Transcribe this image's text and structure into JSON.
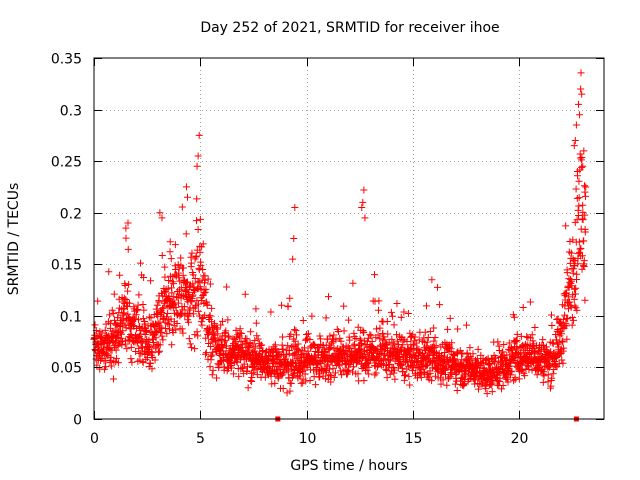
{
  "chart_data": {
    "type": "scatter",
    "title": "Day 252 of 2021, SRMTID for receiver ihoe",
    "xlabel": "GPS time / hours",
    "ylabel": "SRMTID / TECUs",
    "xlim": [
      0,
      24
    ],
    "ylim": [
      0,
      0.35
    ],
    "xticks": [
      0,
      5,
      10,
      15,
      20
    ],
    "yticks": [
      0,
      0.05,
      0.1,
      0.15,
      0.2,
      0.25,
      0.3,
      0.35
    ],
    "grid": true,
    "marker": "plus",
    "colors": {
      "points": "#ff0000",
      "markers": "#ff0000",
      "axes": "#000000",
      "grid": "#a0a0a0"
    },
    "gap_markers_x": [
      8.65,
      22.7
    ],
    "series": [
      {
        "name": "SRMTID",
        "profile": [
          [
            0.0,
            0.07,
            0.025
          ],
          [
            0.5,
            0.068,
            0.025
          ],
          [
            1.0,
            0.082,
            0.03
          ],
          [
            1.5,
            0.1,
            0.04
          ],
          [
            2.0,
            0.085,
            0.035
          ],
          [
            2.5,
            0.072,
            0.03
          ],
          [
            3.0,
            0.09,
            0.04
          ],
          [
            3.5,
            0.11,
            0.045
          ],
          [
            4.0,
            0.12,
            0.05
          ],
          [
            4.5,
            0.115,
            0.05
          ],
          [
            5.0,
            0.13,
            0.055
          ],
          [
            5.5,
            0.08,
            0.03
          ],
          [
            6.0,
            0.065,
            0.025
          ],
          [
            7.0,
            0.062,
            0.025
          ],
          [
            8.0,
            0.055,
            0.02
          ],
          [
            9.0,
            0.052,
            0.025
          ],
          [
            10.0,
            0.058,
            0.025
          ],
          [
            11.0,
            0.06,
            0.025
          ],
          [
            12.0,
            0.06,
            0.025
          ],
          [
            13.0,
            0.065,
            0.025
          ],
          [
            14.0,
            0.062,
            0.025
          ],
          [
            15.0,
            0.058,
            0.025
          ],
          [
            16.0,
            0.06,
            0.025
          ],
          [
            17.0,
            0.052,
            0.02
          ],
          [
            18.0,
            0.048,
            0.02
          ],
          [
            18.5,
            0.042,
            0.018
          ],
          [
            19.0,
            0.048,
            0.02
          ],
          [
            19.5,
            0.055,
            0.022
          ],
          [
            20.0,
            0.06,
            0.022
          ],
          [
            20.5,
            0.062,
            0.022
          ],
          [
            21.0,
            0.058,
            0.022
          ],
          [
            21.5,
            0.055,
            0.022
          ],
          [
            22.0,
            0.08,
            0.03
          ],
          [
            22.5,
            0.14,
            0.06
          ],
          [
            23.0,
            0.2,
            0.08
          ]
        ],
        "outliers": [
          [
            4.95,
            0.275
          ],
          [
            4.9,
            0.255
          ],
          [
            4.85,
            0.245
          ],
          [
            4.35,
            0.225
          ],
          [
            4.4,
            0.215
          ],
          [
            3.1,
            0.2
          ],
          [
            3.2,
            0.195
          ],
          [
            1.6,
            0.19
          ],
          [
            1.5,
            0.185
          ],
          [
            9.45,
            0.205
          ],
          [
            9.4,
            0.175
          ],
          [
            9.35,
            0.155
          ],
          [
            12.7,
            0.222
          ],
          [
            12.65,
            0.21
          ],
          [
            12.6,
            0.205
          ],
          [
            12.75,
            0.195
          ],
          [
            13.2,
            0.14
          ],
          [
            15.9,
            0.135
          ],
          [
            22.9,
            0.32
          ],
          [
            22.95,
            0.315
          ],
          [
            22.8,
            0.305
          ],
          [
            22.85,
            0.295
          ],
          [
            22.7,
            0.285
          ],
          [
            22.65,
            0.27
          ],
          [
            22.6,
            0.265
          ],
          [
            23.05,
            0.26
          ],
          [
            23.0,
            0.245
          ],
          [
            22.75,
            0.24
          ],
          [
            23.1,
            0.22
          ]
        ],
        "n_points": 2400
      }
    ]
  }
}
